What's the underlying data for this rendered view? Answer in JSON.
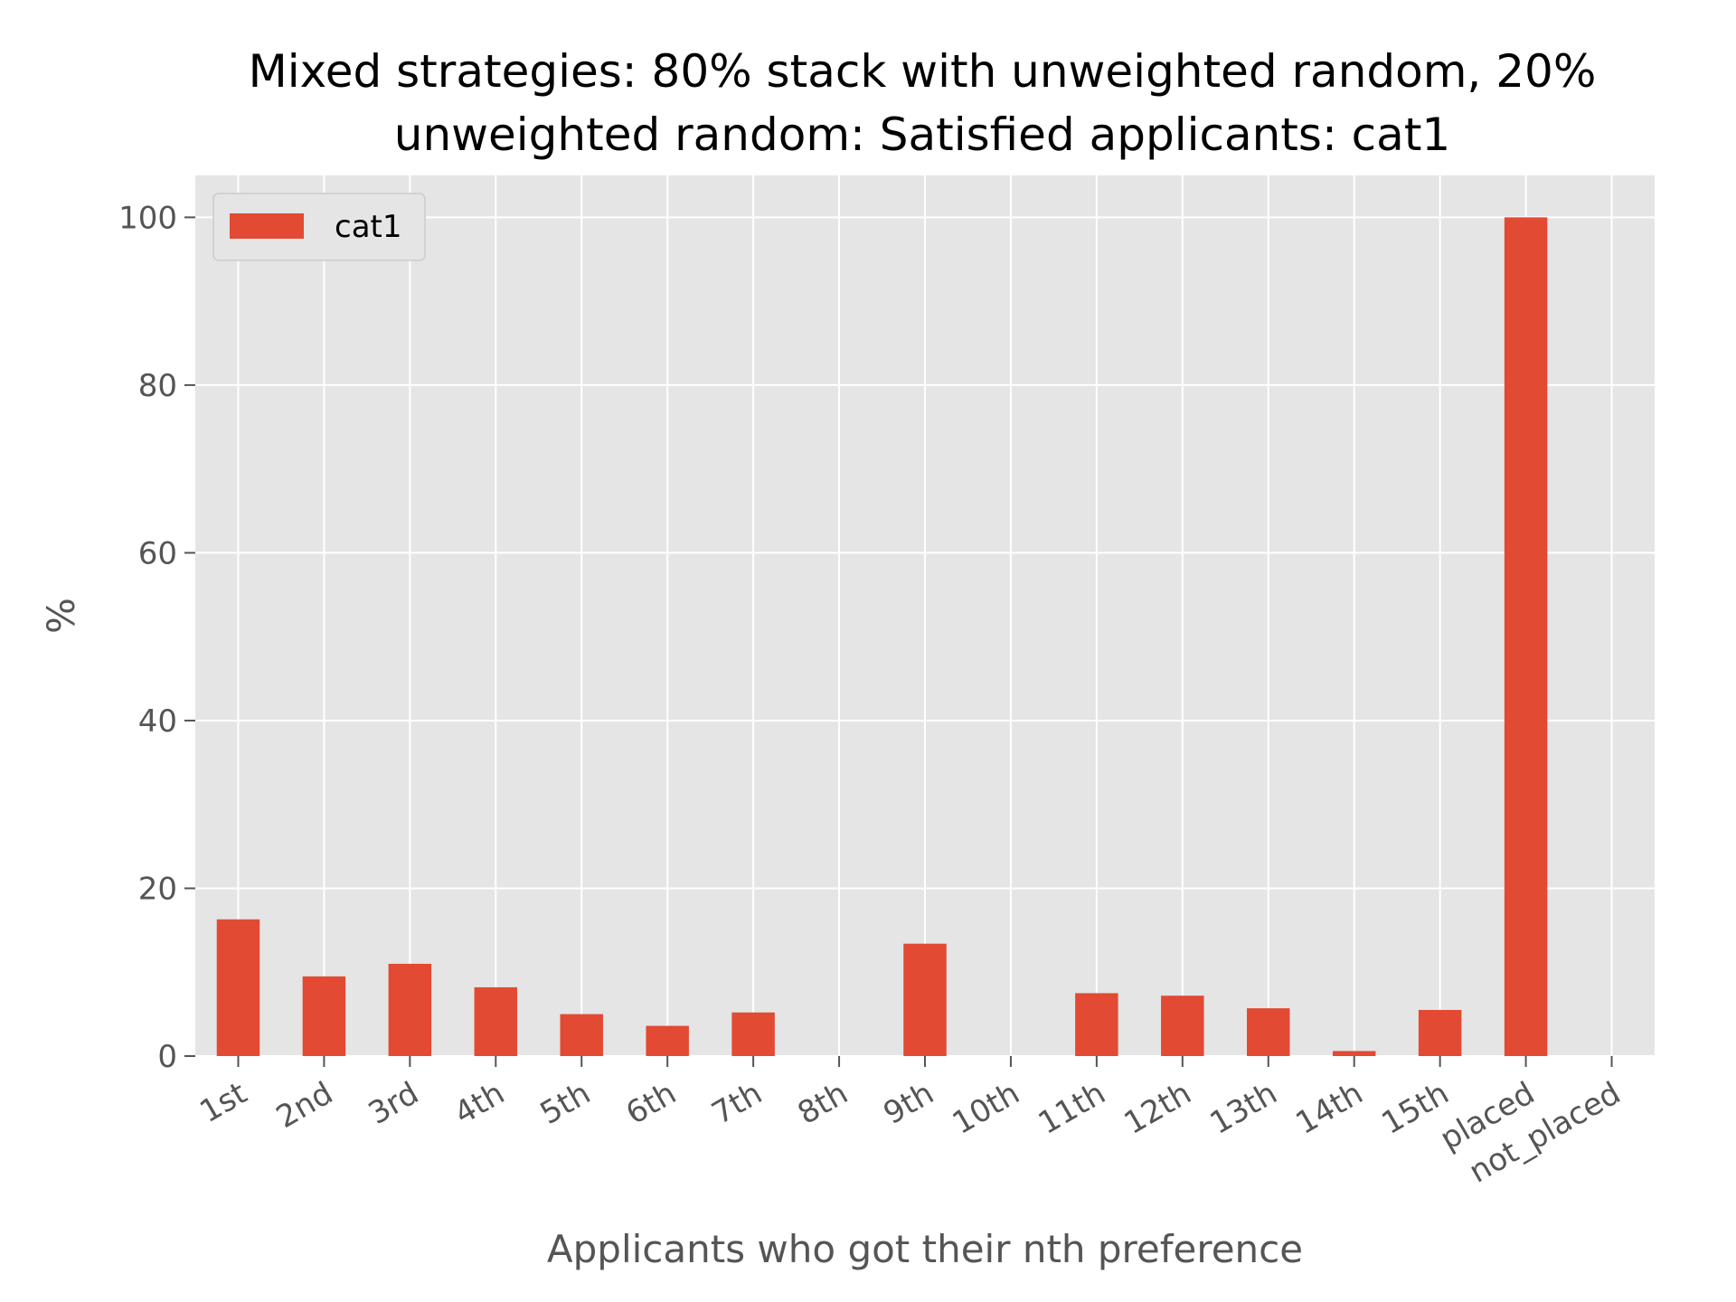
{
  "chart_data": {
    "type": "bar",
    "title_lines": [
      "Mixed strategies: 80% stack with unweighted random, 20%",
      "unweighted random: Satisfied applicants: cat1"
    ],
    "xlabel": "Applicants who got their nth preference",
    "ylabel": "%",
    "ylim": [
      0,
      105
    ],
    "yticks": [
      0,
      20,
      40,
      60,
      80,
      100
    ],
    "grid": true,
    "legend_position": "top-left",
    "categories": [
      "1st",
      "2nd",
      "3rd",
      "4th",
      "5th",
      "6th",
      "7th",
      "8th",
      "9th",
      "10th",
      "11th",
      "12th",
      "13th",
      "14th",
      "15th",
      "placed",
      "not_placed"
    ],
    "series": [
      {
        "name": "cat1",
        "color": "#E24A33",
        "values": [
          16.3,
          9.5,
          11.0,
          8.2,
          5.0,
          3.6,
          5.2,
          0,
          13.4,
          0,
          7.5,
          7.2,
          5.7,
          0.6,
          5.5,
          100,
          0
        ]
      }
    ],
    "colors": {
      "plot_background": "#E5E5E5",
      "grid": "#FFFFFF",
      "tick_text": "#555555"
    }
  }
}
